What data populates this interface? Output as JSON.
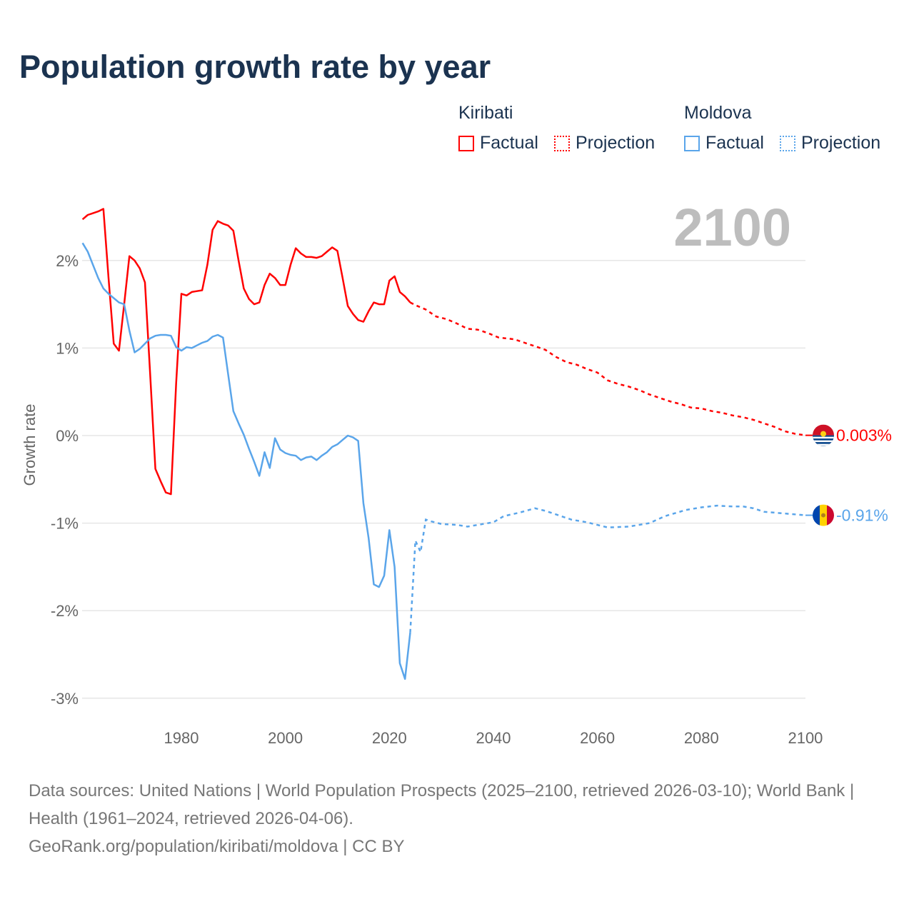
{
  "title": "Population growth rate by year",
  "current_year": "2100",
  "legend": {
    "groups": [
      {
        "name": "Kiribati",
        "factual": "Factual",
        "projection": "Projection",
        "color": "#ff0000"
      },
      {
        "name": "Moldova",
        "factual": "Factual",
        "projection": "Projection",
        "color": "#5aa5ea"
      }
    ]
  },
  "footer": {
    "sources": "Data sources: United Nations | World Population Prospects (2025–2100, retrieved 2026-03-10); World Bank | Health (1961–2024, retrieved 2026-04-06).",
    "credit": "GeoRank.org/population/kiribati/moldova | CC BY"
  },
  "chart_data": {
    "type": "line",
    "title": "Population growth rate by year",
    "xlabel": "",
    "ylabel": "Growth rate",
    "xlim": [
      1961,
      2100
    ],
    "ylim": [
      -3.2,
      2.7
    ],
    "x_ticks": [
      1980,
      2000,
      2020,
      2040,
      2060,
      2080,
      2100
    ],
    "y_ticks": [
      2,
      1,
      0,
      -1,
      -2,
      -3
    ],
    "y_tick_labels": [
      "2%",
      "1%",
      "0%",
      "-1%",
      "-2%",
      "-3%"
    ],
    "grid": true,
    "legend_position": "top-right",
    "series": [
      {
        "name": "Kiribati",
        "color": "#ff0000",
        "end_label": "0.003%",
        "flag": "kiribati-flag",
        "factual": {
          "x": [
            1961,
            1962,
            1963,
            1964,
            1965,
            1966,
            1967,
            1968,
            1969,
            1970,
            1971,
            1972,
            1973,
            1974,
            1975,
            1976,
            1977,
            1978,
            1979,
            1980,
            1981,
            1982,
            1983,
            1984,
            1985,
            1986,
            1987,
            1988,
            1989,
            1990,
            1991,
            1992,
            1993,
            1994,
            1995,
            1996,
            1997,
            1998,
            1999,
            2000,
            2001,
            2002,
            2003,
            2004,
            2005,
            2006,
            2007,
            2008,
            2009,
            2010,
            2011,
            2012,
            2013,
            2014,
            2015,
            2016,
            2017,
            2018,
            2019,
            2020,
            2021,
            2022,
            2023,
            2024
          ],
          "y": [
            2.47,
            2.52,
            2.54,
            2.56,
            2.59,
            1.8,
            1.05,
            0.97,
            1.5,
            2.05,
            2.0,
            1.91,
            1.75,
            0.7,
            -0.38,
            -0.52,
            -0.65,
            -0.67,
            0.6,
            1.62,
            1.6,
            1.64,
            1.65,
            1.66,
            1.95,
            2.35,
            2.45,
            2.42,
            2.4,
            2.34,
            2.0,
            1.68,
            1.56,
            1.5,
            1.52,
            1.72,
            1.85,
            1.8,
            1.72,
            1.72,
            1.95,
            2.14,
            2.08,
            2.04,
            2.04,
            2.03,
            2.05,
            2.1,
            2.15,
            2.11,
            1.8,
            1.48,
            1.39,
            1.32,
            1.3,
            1.42,
            1.52,
            1.5,
            1.5,
            1.77,
            1.82,
            1.64,
            1.59,
            1.52
          ]
        },
        "projection": {
          "x": [
            2024,
            2025,
            2027,
            2028,
            2029,
            2031,
            2033,
            2035,
            2037,
            2039,
            2041,
            2044,
            2046,
            2048,
            2050,
            2052,
            2054,
            2056,
            2058,
            2060,
            2062,
            2064,
            2066,
            2068,
            2070,
            2072,
            2074,
            2076,
            2078,
            2080,
            2082,
            2084,
            2086,
            2088,
            2090,
            2092,
            2094,
            2096,
            2098,
            2100
          ],
          "y": [
            1.52,
            1.49,
            1.44,
            1.4,
            1.36,
            1.33,
            1.28,
            1.22,
            1.21,
            1.17,
            1.12,
            1.1,
            1.06,
            1.02,
            0.98,
            0.9,
            0.84,
            0.81,
            0.76,
            0.72,
            0.63,
            0.59,
            0.56,
            0.52,
            0.47,
            0.43,
            0.39,
            0.36,
            0.32,
            0.31,
            0.28,
            0.26,
            0.23,
            0.21,
            0.18,
            0.14,
            0.1,
            0.05,
            0.02,
            0.003
          ]
        }
      },
      {
        "name": "Moldova",
        "color": "#5aa5ea",
        "end_label": "-0.91%",
        "flag": "moldova-flag",
        "factual": {
          "x": [
            1961,
            1962,
            1963,
            1964,
            1965,
            1966,
            1967,
            1968,
            1969,
            1970,
            1971,
            1972,
            1973,
            1974,
            1975,
            1976,
            1977,
            1978,
            1979,
            1980,
            1981,
            1982,
            1983,
            1984,
            1985,
            1986,
            1987,
            1988,
            1989,
            1990,
            1991,
            1992,
            1993,
            1994,
            1995,
            1996,
            1997,
            1998,
            1999,
            2000,
            2001,
            2002,
            2003,
            2004,
            2005,
            2006,
            2007,
            2008,
            2009,
            2010,
            2011,
            2012,
            2013,
            2014,
            2015,
            2016,
            2017,
            2018,
            2019,
            2020,
            2021,
            2022,
            2023,
            2024
          ],
          "y": [
            2.2,
            2.1,
            1.95,
            1.8,
            1.68,
            1.62,
            1.57,
            1.52,
            1.5,
            1.2,
            0.95,
            0.99,
            1.05,
            1.11,
            1.14,
            1.15,
            1.15,
            1.14,
            1.01,
            0.97,
            1.01,
            1.0,
            1.03,
            1.06,
            1.08,
            1.13,
            1.15,
            1.12,
            0.7,
            0.28,
            0.14,
            0.01,
            -0.15,
            -0.3,
            -0.46,
            -0.19,
            -0.37,
            -0.03,
            -0.16,
            -0.2,
            -0.22,
            -0.23,
            -0.28,
            -0.25,
            -0.24,
            -0.28,
            -0.23,
            -0.19,
            -0.13,
            -0.1,
            -0.05,
            0.0,
            -0.02,
            -0.06,
            -0.77,
            -1.17,
            -1.7,
            -1.73,
            -1.6,
            -1.08,
            -1.5,
            -2.6,
            -2.78,
            -2.25
          ]
        },
        "projection": {
          "x": [
            2024,
            2025,
            2026,
            2027,
            2028,
            2030,
            2033,
            2035,
            2038,
            2040,
            2042,
            2045,
            2048,
            2050,
            2053,
            2055,
            2058,
            2060,
            2062,
            2066,
            2070,
            2073,
            2077,
            2080,
            2083,
            2086,
            2088,
            2090,
            2092,
            2096,
            2100
          ],
          "y": [
            -2.25,
            -1.2,
            -1.33,
            -0.96,
            -0.98,
            -1.01,
            -1.02,
            -1.04,
            -1.01,
            -0.99,
            -0.92,
            -0.88,
            -0.83,
            -0.86,
            -0.92,
            -0.96,
            -0.99,
            -1.02,
            -1.05,
            -1.04,
            -1.0,
            -0.92,
            -0.85,
            -0.82,
            -0.8,
            -0.81,
            -0.81,
            -0.83,
            -0.87,
            -0.89,
            -0.91
          ]
        }
      }
    ]
  }
}
